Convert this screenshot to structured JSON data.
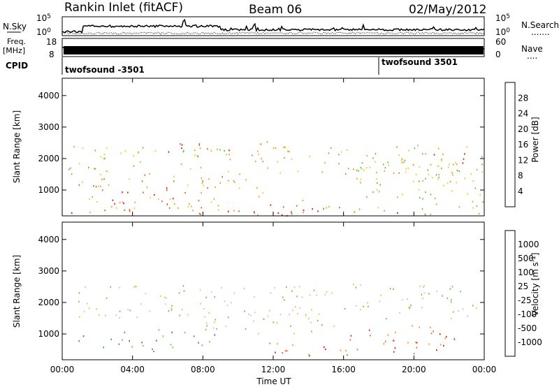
{
  "header": {
    "station": "Rankin Inlet (fitACF)",
    "beam": "Beam 06",
    "date": "02/May/2012"
  },
  "strips": {
    "nsky_label": "N.Sky",
    "nsearch_label": "N.Search",
    "nsearch_marker": ".......",
    "noise_ticks": [
      "10^5",
      "10^0"
    ],
    "noise_ticks_right": [
      "10^5",
      "10^0"
    ],
    "freq_label": "Freq.",
    "freq_unit": "[MHz]",
    "freq_ticks": [
      "18",
      "8"
    ],
    "nave_label": "Nave",
    "nave_marker": "....",
    "nave_ticks": [
      "60",
      "0"
    ],
    "cpid_label": "CPID",
    "cpid_segments": [
      {
        "name": "twofsound -3501",
        "start_hour": 0.0
      },
      {
        "name": "twofsound 3501",
        "start_hour": 18.0
      }
    ]
  },
  "chart_data": [
    {
      "type": "heatmap",
      "title": "Power",
      "ylabel": "Slant Range [km]",
      "xlabel": "Time UT",
      "x_range_hours": [
        0,
        24
      ],
      "x_ticks": [
        "00:00",
        "04:00",
        "08:00",
        "12:00",
        "16:00",
        "20:00",
        "00:00"
      ],
      "y_range_km": [
        180,
        4550
      ],
      "y_ticks": [
        1000,
        2000,
        3000,
        4000
      ],
      "colorbar_label": "Power [dB]",
      "colorbar_ticks": [
        "4",
        "8",
        "12",
        "16",
        "20",
        "24",
        "28"
      ],
      "colorbar_colors": [
        "#0a14f0",
        "#2550c8",
        "#2f8a5e",
        "#5fc23a",
        "#e8d024",
        "#f59a18",
        "#ee5a12",
        "#e01010"
      ],
      "scatter_regions": [
        {
          "t0": 0.3,
          "t1": 23.9,
          "r0": 1500,
          "r1": 2450,
          "level": 4
        },
        {
          "t0": 0.3,
          "t1": 11.5,
          "r0": 350,
          "r1": 1500,
          "level": 5
        },
        {
          "t0": 2.5,
          "t1": 6.5,
          "r0": 500,
          "r1": 1100,
          "level": 7
        },
        {
          "t0": 11.5,
          "t1": 16.5,
          "r0": 300,
          "r1": 700,
          "level": 6
        },
        {
          "t0": 16.5,
          "t1": 23.9,
          "r0": 350,
          "r1": 2000,
          "level": 4
        },
        {
          "t0": 21.0,
          "t1": 23.2,
          "r0": 1700,
          "r1": 2200,
          "level": 7
        },
        {
          "t0": 6.0,
          "t1": 12.0,
          "r0": 2200,
          "r1": 2550,
          "level": 6
        },
        {
          "t0": 0.3,
          "t1": 23.9,
          "r0": 200,
          "r1": 400,
          "level": 6
        }
      ]
    },
    {
      "type": "heatmap",
      "title": "Velocity",
      "ylabel": "Slant Range [km]",
      "xlabel": "Time UT",
      "x_range_hours": [
        0,
        24
      ],
      "x_ticks": [
        "00:00",
        "04:00",
        "08:00",
        "12:00",
        "16:00",
        "20:00",
        "00:00"
      ],
      "y_range_km": [
        180,
        4550
      ],
      "y_ticks": [
        1000,
        2000,
        3000,
        4000
      ],
      "colorbar_label": "Velocity [m s^-1]",
      "colorbar_ticks": [
        "1000",
        "500",
        "100",
        "25",
        "-25",
        "-100",
        "-500",
        "-1000"
      ],
      "colorbar_colors": [
        "#1e3cc8",
        "#2a6ab4",
        "#3d9560",
        "#68c838",
        "#c8c8c0",
        "#f0c040",
        "#f29420",
        "#ee6818",
        "#e01010"
      ],
      "scatter_regions": [
        {
          "t0": 0.3,
          "t1": 23.9,
          "r0": 1500,
          "r1": 2600,
          "level": 4
        },
        {
          "t0": 2.2,
          "t1": 8.8,
          "r0": 450,
          "r1": 1200,
          "level": 2
        },
        {
          "t0": 0.5,
          "t1": 2.0,
          "r0": 500,
          "r1": 1000,
          "level": 2
        },
        {
          "t0": 11.5,
          "t1": 16.5,
          "r0": 300,
          "r1": 750,
          "level": 7
        },
        {
          "t0": 16.0,
          "t1": 22.8,
          "r0": 400,
          "r1": 1300,
          "level": 7
        },
        {
          "t0": 8.0,
          "t1": 16.0,
          "r0": 1000,
          "r1": 1700,
          "level": 4
        }
      ]
    }
  ]
}
